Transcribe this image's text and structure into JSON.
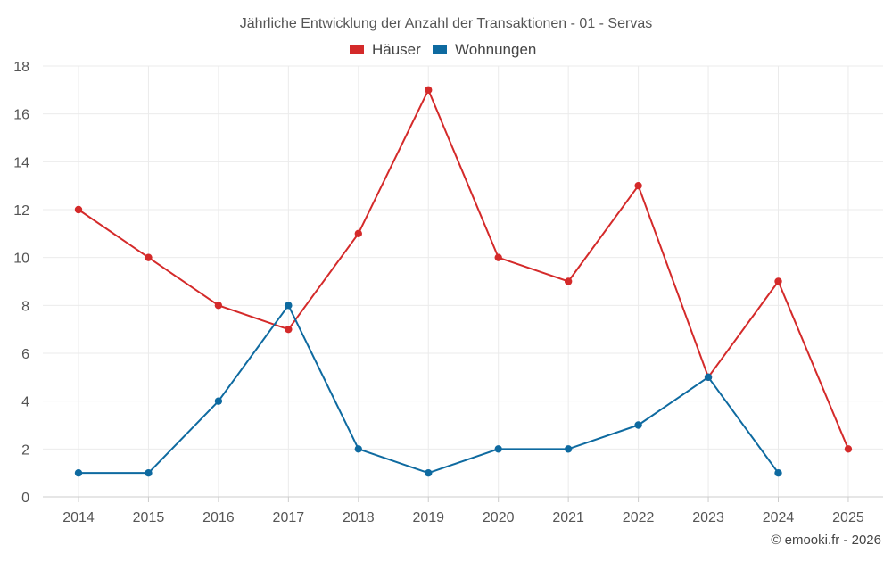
{
  "chart_data": {
    "type": "line",
    "title": "Jährliche Entwicklung der Anzahl der Transaktionen - 01 - Servas",
    "categories": [
      "2014",
      "2015",
      "2016",
      "2017",
      "2018",
      "2019",
      "2020",
      "2021",
      "2022",
      "2023",
      "2024",
      "2025"
    ],
    "series": [
      {
        "name": "Häuser",
        "color": "#d42a2a",
        "values": [
          12,
          10,
          8,
          7,
          11,
          17,
          10,
          9,
          13,
          5,
          9,
          2
        ]
      },
      {
        "name": "Wohnungen",
        "color": "#0e6aa0",
        "values": [
          1,
          1,
          4,
          8,
          2,
          1,
          2,
          2,
          3,
          5,
          1,
          null
        ]
      }
    ],
    "ylim": [
      0,
      18
    ],
    "yticks": [
      0,
      2,
      4,
      6,
      8,
      10,
      12,
      14,
      16,
      18
    ],
    "grid": true,
    "legend": "top-center",
    "xlabel": "",
    "ylabel": ""
  },
  "credit": "© emooki.fr - 2026"
}
